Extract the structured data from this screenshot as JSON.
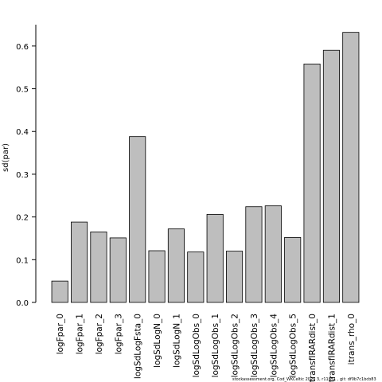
{
  "chart_data": {
    "type": "bar",
    "title": "",
    "xlabel": "",
    "ylabel": "sd(par)",
    "ylim": [
      0,
      0.65
    ],
    "yticks": [
      0.0,
      0.1,
      0.2,
      0.3,
      0.4,
      0.5,
      0.6
    ],
    "ytick_labels": [
      "0.0",
      "0.1",
      "0.2",
      "0.3",
      "0.4",
      "0.5",
      "0.6"
    ],
    "grid": false,
    "bar_color": "#bebebe",
    "categories": [
      "logFpar_0",
      "logFpar_1",
      "logFpar_2",
      "logFpar_3",
      "logSdLogFsta_0",
      "logSdLogN_0",
      "logSdLogN_1",
      "logSdLogObs_0",
      "logSdLogObs_1",
      "logSdLogObs_2",
      "logSdLogObs_3",
      "logSdLogObs_4",
      "logSdLogObs_5",
      "transfIRARdist_0",
      "transfIRARdist_1",
      "itrans_rho_0"
    ],
    "values": [
      0.05,
      0.188,
      0.165,
      0.151,
      0.388,
      0.121,
      0.172,
      0.118,
      0.206,
      0.12,
      0.224,
      0.226,
      0.152,
      0.558,
      0.59,
      0.632
    ]
  },
  "footer": {
    "text": "stockassessment.org, Cod_WKCeltic 2020 3, r11851 , git: df0b7c1bcb83"
  }
}
